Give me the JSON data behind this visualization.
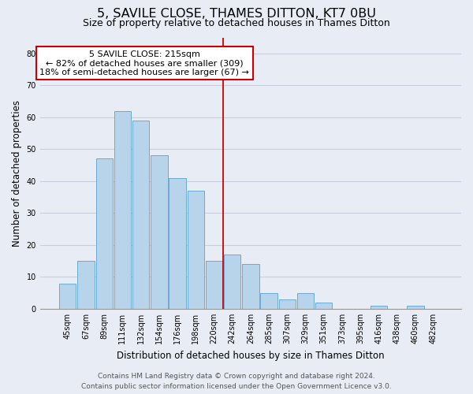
{
  "title": "5, SAVILE CLOSE, THAMES DITTON, KT7 0BU",
  "subtitle": "Size of property relative to detached houses in Thames Ditton",
  "xlabel": "Distribution of detached houses by size in Thames Ditton",
  "ylabel": "Number of detached properties",
  "bar_labels": [
    "45sqm",
    "67sqm",
    "89sqm",
    "111sqm",
    "132sqm",
    "154sqm",
    "176sqm",
    "198sqm",
    "220sqm",
    "242sqm",
    "264sqm",
    "285sqm",
    "307sqm",
    "329sqm",
    "351sqm",
    "373sqm",
    "395sqm",
    "416sqm",
    "438sqm",
    "460sqm",
    "482sqm"
  ],
  "bar_values": [
    8,
    15,
    47,
    62,
    59,
    48,
    41,
    37,
    15,
    17,
    14,
    5,
    3,
    5,
    2,
    0,
    0,
    1,
    0,
    1,
    0
  ],
  "bar_color": "#b8d4ea",
  "bar_edge_color": "#6aaad4",
  "vline_x": 8.5,
  "vline_color": "#cc0000",
  "annotation_title": "5 SAVILE CLOSE: 215sqm",
  "annotation_line1": "← 82% of detached houses are smaller (309)",
  "annotation_line2": "18% of semi-detached houses are larger (67) →",
  "annotation_box_color": "#ffffff",
  "annotation_box_edge": "#cc0000",
  "ylim": [
    0,
    85
  ],
  "yticks": [
    0,
    10,
    20,
    30,
    40,
    50,
    60,
    70,
    80
  ],
  "grid_color": "#cacfe0",
  "background_color": "#e8ecf5",
  "footer_line1": "Contains HM Land Registry data © Crown copyright and database right 2024.",
  "footer_line2": "Contains public sector information licensed under the Open Government Licence v3.0.",
  "title_fontsize": 11.5,
  "subtitle_fontsize": 9,
  "label_fontsize": 8.5,
  "tick_fontsize": 7,
  "footer_fontsize": 6.5,
  "annot_fontsize": 8
}
